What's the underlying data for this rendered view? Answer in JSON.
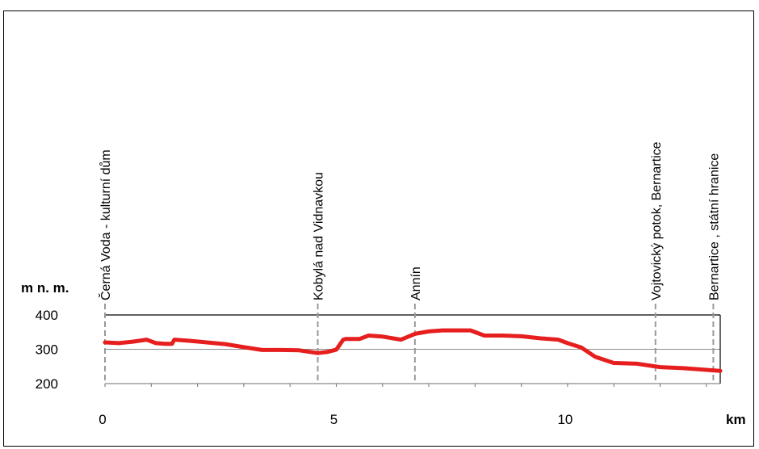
{
  "chart_data": {
    "type": "area",
    "ylabel": "m n. m.",
    "xlabel": "km",
    "x_ticks": [
      0,
      5,
      10
    ],
    "y_ticks": [
      200,
      300,
      400
    ],
    "xlim": [
      0,
      13.3
    ],
    "ylim": [
      200,
      400
    ],
    "grid": true,
    "series": [
      {
        "color": "#e61e1e",
        "x": [
          0,
          0.3,
          0.6,
          0.9,
          1.1,
          1.3,
          1.45,
          1.5,
          1.8,
          2.2,
          2.6,
          3.0,
          3.4,
          3.8,
          4.2,
          4.6,
          4.8,
          5.0,
          5.15,
          5.2,
          5.5,
          5.7,
          6.0,
          6.4,
          6.7,
          7.0,
          7.3,
          7.6,
          7.9,
          8.2,
          8.6,
          9.0,
          9.4,
          9.8,
          10.0,
          10.3,
          10.6,
          11.0,
          11.5,
          12.0,
          12.5,
          13.0,
          13.3
        ],
        "y": [
          320,
          318,
          322,
          328,
          318,
          316,
          316,
          328,
          325,
          320,
          315,
          306,
          298,
          298,
          297,
          289,
          292,
          299,
          328,
          330,
          330,
          340,
          337,
          328,
          345,
          352,
          355,
          355,
          355,
          340,
          340,
          338,
          332,
          328,
          318,
          305,
          278,
          260,
          258,
          248,
          245,
          240,
          237
        ]
      }
    ],
    "annotations": [
      {
        "x": 0,
        "label": "Černá Voda - kulturní dům"
      },
      {
        "x": 4.6,
        "label": "Kobylá nad Vidnavkou"
      },
      {
        "x": 6.7,
        "label": "Annín"
      },
      {
        "x": 11.9,
        "label": "Vojtovický potok, Bernartice"
      },
      {
        "x": 13.15,
        "label": "Bernartice , státní hranice"
      }
    ]
  }
}
